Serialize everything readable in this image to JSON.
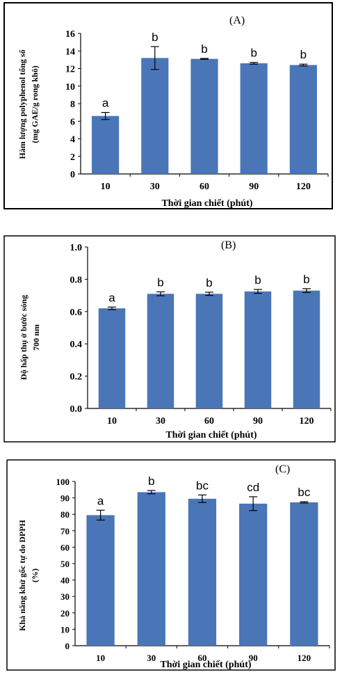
{
  "bar_color": "#4a76b8",
  "chart_data": [
    {
      "type": "bar",
      "panel_label": "(A)",
      "categories": [
        "10",
        "30",
        "60",
        "90",
        "120"
      ],
      "values": [
        6.6,
        13.2,
        13.1,
        12.6,
        12.4
      ],
      "errors": [
        0.4,
        1.3,
        0.05,
        0.1,
        0.1
      ],
      "letters": [
        "a",
        "b",
        "b",
        "b",
        "b"
      ],
      "xlabel": "Thời gian chiết (phút)",
      "ylabel_lines": [
        "Hàm lượng polyphenol tổng số",
        "(mg GAE/g rong khô)"
      ],
      "ylim": [
        0,
        16
      ],
      "yticks": [
        "0",
        "2",
        "4",
        "6",
        "8",
        "10",
        "12",
        "14",
        "16"
      ]
    },
    {
      "type": "bar",
      "panel_label": "(B)",
      "categories": [
        "10",
        "30",
        "60",
        "90",
        "120"
      ],
      "values": [
        0.62,
        0.71,
        0.71,
        0.725,
        0.73
      ],
      "errors": [
        0.008,
        0.012,
        0.01,
        0.012,
        0.012
      ],
      "letters": [
        "a",
        "b",
        "b",
        "b",
        "b"
      ],
      "xlabel": "Thời gian chiết (phút)",
      "ylabel_lines": [
        "Độ hấp thụ ở bước sóng",
        "700 nm"
      ],
      "ylim": [
        0,
        1
      ],
      "yticks": [
        "0.0",
        "0.2",
        "0.4",
        "0.6",
        "0.8",
        "1.0"
      ]
    },
    {
      "type": "bar",
      "panel_label": "(C)",
      "categories": [
        "10",
        "30",
        "60",
        "90",
        "120"
      ],
      "values": [
        79.5,
        93.5,
        89.5,
        86.5,
        87.3
      ],
      "errors": [
        3,
        1,
        2.3,
        4.2,
        0.4
      ],
      "letters": [
        "a",
        "b",
        "bc",
        "cd",
        "bc"
      ],
      "xlabel": "Thời gian chiết (phút)",
      "ylabel_lines": [
        "Khả năng khử gốc tự do DPPH",
        "(%)"
      ],
      "ylim": [
        0,
        100
      ],
      "yticks": [
        "0",
        "10",
        "20",
        "30",
        "40",
        "50",
        "60",
        "70",
        "80",
        "90",
        "100"
      ]
    }
  ]
}
